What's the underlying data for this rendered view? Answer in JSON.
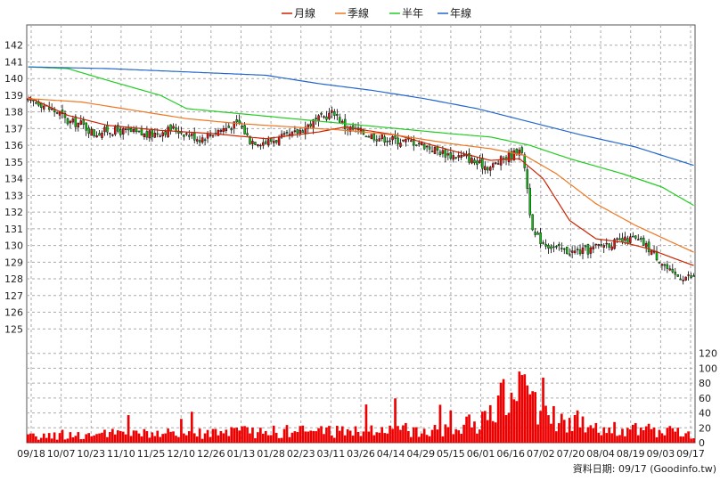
{
  "chart_data": {
    "type": "candlestick",
    "legend": [
      {
        "label": "月線",
        "color": "#cc2200"
      },
      {
        "label": "季線",
        "color": "#ee7722"
      },
      {
        "label": "半年",
        "color": "#22cc22"
      },
      {
        "label": "年線",
        "color": "#2266cc"
      }
    ],
    "price_axis": {
      "ylim": [
        124,
        143
      ],
      "ticks": [
        142,
        141,
        140,
        139,
        138,
        137,
        136,
        135,
        134,
        133,
        132,
        131,
        130,
        129,
        128,
        127,
        126,
        125
      ]
    },
    "volume_axis": {
      "ylim": [
        0,
        140
      ],
      "ticks": [
        120,
        100,
        80,
        60,
        40,
        20,
        0
      ]
    },
    "x_labels": [
      "09/18",
      "10/07",
      "10/23",
      "11/10",
      "11/25",
      "12/10",
      "12/26",
      "01/13",
      "01/28",
      "02/23",
      "03/11",
      "03/26",
      "04/14",
      "04/29",
      "05/15",
      "06/01",
      "06/16",
      "07/02",
      "07/20",
      "08/04",
      "08/19",
      "09/03",
      "09/17"
    ],
    "series_anchors": {
      "close": [
        [
          0,
          138.6
        ],
        [
          4,
          138.6
        ],
        [
          8,
          138.2
        ],
        [
          12,
          137.9
        ],
        [
          15,
          137.4
        ],
        [
          20,
          137.3
        ],
        [
          25,
          136.7
        ],
        [
          30,
          136.9
        ],
        [
          38,
          136.8
        ],
        [
          45,
          136.6
        ],
        [
          55,
          137.0
        ],
        [
          65,
          136.4
        ],
        [
          72,
          136.9
        ],
        [
          80,
          137.3
        ],
        [
          84,
          136.3
        ],
        [
          90,
          136.2
        ],
        [
          100,
          136.6
        ],
        [
          108,
          137.4
        ],
        [
          116,
          138.0
        ],
        [
          120,
          137.1
        ],
        [
          126,
          136.8
        ],
        [
          132,
          136.5
        ],
        [
          140,
          136.3
        ],
        [
          147,
          136.2
        ],
        [
          153,
          135.8
        ],
        [
          160,
          135.4
        ],
        [
          166,
          135.3
        ],
        [
          170,
          134.9
        ],
        [
          175,
          134.7
        ],
        [
          180,
          135.2
        ],
        [
          184,
          135.5
        ],
        [
          186,
          135.9
        ],
        [
          188,
          134.8
        ],
        [
          191,
          130.7
        ],
        [
          195,
          130.2
        ],
        [
          200,
          129.8
        ],
        [
          206,
          129.6
        ],
        [
          212,
          129.7
        ],
        [
          218,
          130.1
        ],
        [
          224,
          130.2
        ],
        [
          229,
          130.4
        ],
        [
          233,
          130.1
        ],
        [
          237,
          129.5
        ],
        [
          240,
          129.0
        ],
        [
          244,
          128.2
        ],
        [
          252,
          128.1
        ]
      ],
      "month_ma": [
        [
          0,
          138.9
        ],
        [
          15,
          137.8
        ],
        [
          30,
          137.2
        ],
        [
          50,
          136.9
        ],
        [
          70,
          136.7
        ],
        [
          90,
          136.4
        ],
        [
          110,
          136.8
        ],
        [
          120,
          137.1
        ],
        [
          140,
          136.6
        ],
        [
          160,
          135.7
        ],
        [
          175,
          135.1
        ],
        [
          186,
          135.2
        ],
        [
          195,
          134.0
        ],
        [
          205,
          131.5
        ],
        [
          215,
          130.4
        ],
        [
          225,
          130.2
        ],
        [
          235,
          129.8
        ],
        [
          245,
          129.2
        ],
        [
          252,
          128.8
        ]
      ],
      "quarter_ma": [
        [
          0,
          138.8
        ],
        [
          20,
          138.6
        ],
        [
          40,
          138.1
        ],
        [
          60,
          137.6
        ],
        [
          80,
          137.3
        ],
        [
          100,
          137.1
        ],
        [
          120,
          136.9
        ],
        [
          140,
          136.6
        ],
        [
          160,
          136.1
        ],
        [
          175,
          135.8
        ],
        [
          188,
          135.4
        ],
        [
          200,
          134.3
        ],
        [
          215,
          132.5
        ],
        [
          230,
          131.2
        ],
        [
          245,
          130.1
        ],
        [
          252,
          129.6
        ]
      ],
      "half_ma": [
        [
          0,
          140.7
        ],
        [
          15,
          140.6
        ],
        [
          30,
          139.9
        ],
        [
          50,
          139.0
        ],
        [
          60,
          138.2
        ],
        [
          80,
          137.9
        ],
        [
          100,
          137.6
        ],
        [
          120,
          137.3
        ],
        [
          140,
          137.0
        ],
        [
          160,
          136.7
        ],
        [
          175,
          136.5
        ],
        [
          190,
          136.0
        ],
        [
          205,
          135.2
        ],
        [
          225,
          134.3
        ],
        [
          240,
          133.5
        ],
        [
          252,
          132.4
        ]
      ],
      "year_ma": [
        [
          0,
          140.7
        ],
        [
          30,
          140.6
        ],
        [
          60,
          140.4
        ],
        [
          90,
          140.2
        ],
        [
          110,
          139.7
        ],
        [
          130,
          139.3
        ],
        [
          150,
          138.8
        ],
        [
          170,
          138.2
        ],
        [
          190,
          137.4
        ],
        [
          210,
          136.6
        ],
        [
          230,
          135.9
        ],
        [
          252,
          134.8
        ]
      ]
    },
    "volume_anchors": [
      [
        0,
        8
      ],
      [
        20,
        10
      ],
      [
        40,
        12
      ],
      [
        60,
        12
      ],
      [
        80,
        14
      ],
      [
        100,
        15
      ],
      [
        120,
        16
      ],
      [
        150,
        18
      ],
      [
        170,
        25
      ],
      [
        180,
        55
      ],
      [
        188,
        70
      ],
      [
        195,
        40
      ],
      [
        205,
        30
      ],
      [
        215,
        22
      ],
      [
        225,
        18
      ],
      [
        240,
        15
      ],
      [
        252,
        12
      ]
    ]
  },
  "credit": "資料日期: 09/17  (Goodinfo.tw)"
}
